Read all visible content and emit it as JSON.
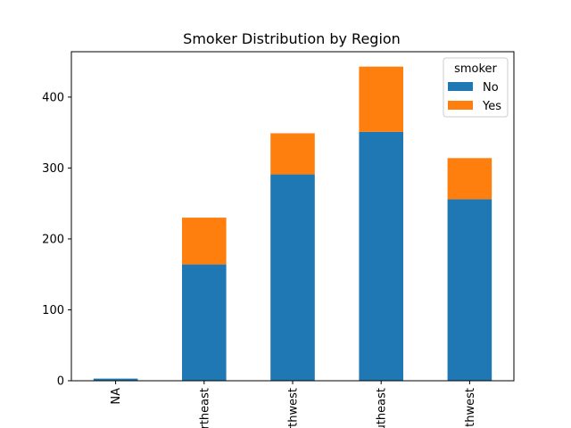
{
  "chart_data": {
    "type": "bar",
    "stacked": true,
    "title": "Smoker Distribution by Region",
    "xlabel": "",
    "ylabel": "",
    "categories": [
      "NA",
      "northeast",
      "northwest",
      "southeast",
      "southwest"
    ],
    "series": [
      {
        "name": "No",
        "values": [
          3,
          164,
          291,
          351,
          256
        ],
        "color": "#1f77b4"
      },
      {
        "name": "Yes",
        "values": [
          0,
          66,
          58,
          92,
          58
        ],
        "color": "#ff7f0e"
      }
    ],
    "ylim": [
      0,
      464
    ],
    "yticks": [
      0,
      100,
      200,
      300,
      400
    ],
    "legend": {
      "title": "smoker",
      "position": "top-right"
    },
    "grid": false
  }
}
